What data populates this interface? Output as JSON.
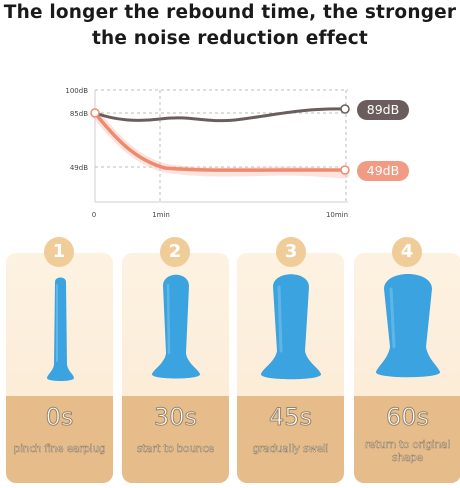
{
  "headline": {
    "line1": "The longer the rebound time, the stronger",
    "line2": "the noise reduction effect"
  },
  "chart_data": {
    "type": "line",
    "x_tick_labels": [
      "0",
      "1min",
      "10min"
    ],
    "y_tick_labels": [
      "100dB",
      "85dB",
      "49dB"
    ],
    "series": [
      {
        "end_label": "89dB",
        "color": "#6b5d5d"
      },
      {
        "end_label": "49dB",
        "color": "#f29b84"
      }
    ]
  },
  "steps": [
    {
      "number": "1",
      "time": "0s",
      "caption": [
        "pinch fine earplug"
      ]
    },
    {
      "number": "2",
      "time": "30s",
      "caption": [
        "start to bounce"
      ]
    },
    {
      "number": "3",
      "time": "45s",
      "caption": [
        "gradually swell"
      ]
    },
    {
      "number": "4",
      "time": "60s",
      "caption": [
        "return to original",
        "shape"
      ]
    }
  ],
  "colors": {
    "earplug": "#3aa3e0",
    "card_bottom": "#e6bd8a",
    "number_circle": "#f0cc99"
  }
}
